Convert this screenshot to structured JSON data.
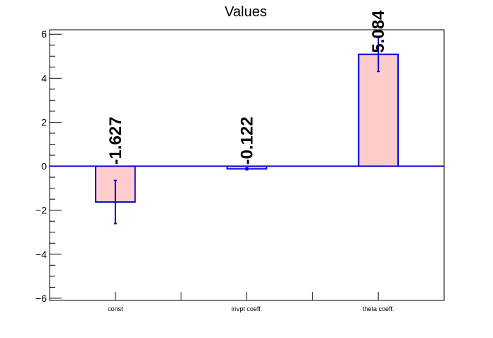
{
  "chart_data": {
    "type": "bar",
    "title": "Values",
    "xlabel": "",
    "ylabel": "",
    "categories": [
      "const",
      "invpt coeff.",
      "theta coeff."
    ],
    "values": [
      -1.627,
      -0.122,
      5.084
    ],
    "errors": [
      0.98,
      0.04,
      0.78
    ],
    "value_labels": [
      "-1.627",
      "-0.122",
      "5.084"
    ],
    "ylim": [
      -6.1,
      6.2
    ],
    "yticks": [
      -6,
      -4,
      -2,
      0,
      2,
      4,
      6
    ],
    "ytick_labels": [
      "−6",
      "−4",
      "−2",
      "0",
      "2",
      "4",
      "6"
    ],
    "grid": false,
    "legend": "none",
    "colors": {
      "bar_fill": "#ffcccc",
      "bar_edge": "#0000dd",
      "error_bar": "#0000dd",
      "zero_line": "#0000dd",
      "axis": "#000000"
    }
  }
}
